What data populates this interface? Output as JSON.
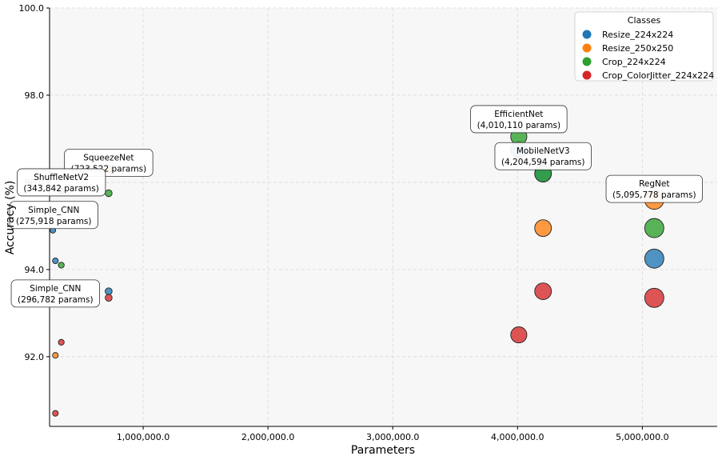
{
  "chart_data": {
    "type": "scatter",
    "xlabel": "Parameters",
    "ylabel": "Accuracy (%)",
    "xlim": [
      250000,
      5600000
    ],
    "ylim": [
      90.4,
      100.0
    ],
    "xticks": [
      1000000,
      2000000,
      3000000,
      4000000,
      5000000
    ],
    "xtick_labels": [
      "1,000,000.0",
      "2,000,000.0",
      "3,000,000.0",
      "4,000,000.0",
      "5,000,000.0"
    ],
    "yticks": [
      92.0,
      94.0,
      96.0,
      98.0,
      100.0
    ],
    "ytick_labels": [
      "92.0",
      "94.0",
      "96.0",
      "98.0",
      "100.0"
    ],
    "grid": true,
    "legend": {
      "title": "Classes",
      "placement": "top-right",
      "entries": [
        {
          "label": "Resize_224x224",
          "color": "#1f77b4"
        },
        {
          "label": "Resize_250x250",
          "color": "#ff7f0e"
        },
        {
          "label": "Crop_224x224",
          "color": "#2ca02c"
        },
        {
          "label": "Crop_ColorJitter_224x224",
          "color": "#d62728"
        }
      ]
    },
    "series": [
      {
        "name": "Resize_224x224",
        "color": "#1f77b4",
        "points": [
          {
            "x": 275918,
            "y": 94.9
          },
          {
            "x": 296782,
            "y": 94.2
          },
          {
            "x": 343842,
            "y": 95.8
          },
          {
            "x": 723522,
            "y": 93.5
          },
          {
            "x": 4010110,
            "y": 96.75
          },
          {
            "x": 4204594,
            "y": 96.2
          },
          {
            "x": 5095778,
            "y": 94.25
          }
        ]
      },
      {
        "name": "Resize_250x250",
        "color": "#ff7f0e",
        "points": [
          {
            "x": 296782,
            "y": 92.03
          },
          {
            "x": 723522,
            "y": 96.3
          },
          {
            "x": 4204594,
            "y": 94.95
          },
          {
            "x": 5095778,
            "y": 95.6
          }
        ]
      },
      {
        "name": "Crop_224x224",
        "color": "#2ca02c",
        "points": [
          {
            "x": 343842,
            "y": 94.1
          },
          {
            "x": 723522,
            "y": 95.75
          },
          {
            "x": 4010110,
            "y": 97.05
          },
          {
            "x": 4204594,
            "y": 96.2
          },
          {
            "x": 5095778,
            "y": 94.95
          }
        ]
      },
      {
        "name": "Crop_ColorJitter_224x224",
        "color": "#d62728",
        "points": [
          {
            "x": 296782,
            "y": 90.7
          },
          {
            "x": 343842,
            "y": 92.33
          },
          {
            "x": 723522,
            "y": 93.35
          },
          {
            "x": 4010110,
            "y": 92.5
          },
          {
            "x": 4204594,
            "y": 93.5
          },
          {
            "x": 5095778,
            "y": 93.35
          }
        ]
      }
    ],
    "annotations": [
      {
        "name": "SqueezeNet",
        "params": "(723,522 params)",
        "x": 723522,
        "y": 96.45
      },
      {
        "name": "ShuffleNetV2",
        "params": "(343,842 params)",
        "x": 343842,
        "y": 96.0
      },
      {
        "name": "Simple_CNN",
        "params": "(275,918 params)",
        "x": 275918,
        "y": 95.25
      },
      {
        "name": "Simple_CNN",
        "params": "(296,782 params)",
        "x": 296782,
        "y": 93.45
      },
      {
        "name": "EfficientNet",
        "params": "(4,010,110 params)",
        "x": 4010110,
        "y": 97.45
      },
      {
        "name": "MobileNetV3",
        "params": "(4,204,594 params)",
        "x": 4204594,
        "y": 96.6
      },
      {
        "name": "RegNet",
        "params": "(5,095,778 params)",
        "x": 5095778,
        "y": 95.85
      }
    ]
  }
}
